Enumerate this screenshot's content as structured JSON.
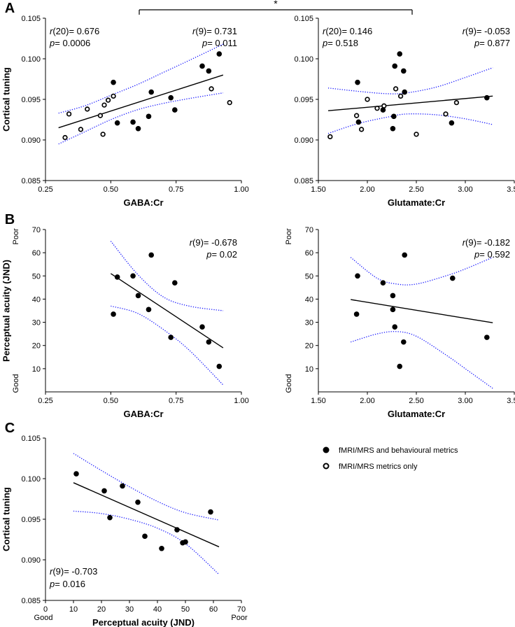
{
  "figure": {
    "significance_star": "*",
    "legend": [
      {
        "marker": "filled",
        "label": "fMRI/MRS and behavioural metrics"
      },
      {
        "marker": "open",
        "label": "fMRI/MRS metrics only"
      }
    ],
    "colors": {
      "ci": "#1a1aff",
      "fit": "#000000",
      "axis": "#000000"
    }
  },
  "chart_data": [
    {
      "id": "A-left",
      "panel_label": "A",
      "type": "scatter",
      "xlabel": "GABA:Cr",
      "ylabel": "Cortical tuning",
      "xlim": [
        0.25,
        1.0
      ],
      "ylim": [
        0.085,
        0.105
      ],
      "xticks": [
        "0.25",
        "0.50",
        "0.75",
        "1.00"
      ],
      "yticks": [
        "0.085",
        "0.090",
        "0.095",
        "0.100",
        "0.105"
      ],
      "fit": {
        "x": [
          0.3,
          0.93
        ],
        "y": [
          0.0915,
          0.098
        ]
      },
      "ci_upper": {
        "x": [
          0.3,
          0.4,
          0.5,
          0.6,
          0.7,
          0.8,
          0.93
        ],
        "y": [
          0.0933,
          0.0942,
          0.0955,
          0.0968,
          0.0983,
          0.0998,
          0.1018
        ]
      },
      "ci_lower": {
        "x": [
          0.3,
          0.4,
          0.5,
          0.6,
          0.7,
          0.8,
          0.93
        ],
        "y": [
          0.0895,
          0.091,
          0.0925,
          0.0937,
          0.0945,
          0.0951,
          0.0958
        ]
      },
      "filled": [
        [
          0.51,
          0.0971
        ],
        [
          0.525,
          0.0921
        ],
        [
          0.585,
          0.0922
        ],
        [
          0.605,
          0.0914
        ],
        [
          0.645,
          0.0929
        ],
        [
          0.655,
          0.0959
        ],
        [
          0.73,
          0.0952
        ],
        [
          0.745,
          0.0937
        ],
        [
          0.85,
          0.0991
        ],
        [
          0.875,
          0.0985
        ],
        [
          0.915,
          0.1006
        ]
      ],
      "open": [
        [
          0.325,
          0.0903
        ],
        [
          0.34,
          0.0932
        ],
        [
          0.385,
          0.0913
        ],
        [
          0.41,
          0.0938
        ],
        [
          0.46,
          0.093
        ],
        [
          0.47,
          0.0907
        ],
        [
          0.475,
          0.0943
        ],
        [
          0.49,
          0.0949
        ],
        [
          0.51,
          0.0954
        ],
        [
          0.885,
          0.0963
        ],
        [
          0.955,
          0.0946
        ]
      ],
      "stats_left": {
        "r_label": "r",
        "r_text": "(20)= 0.676",
        "p_label": "p",
        "p_text": "= 0.0006"
      },
      "stats_right": {
        "r_label": "r",
        "r_text": "(9)= 0.731",
        "p_label": "p",
        "p_text": "= 0.011"
      }
    },
    {
      "id": "A-right",
      "type": "scatter",
      "xlabel": "Glutamate:Cr",
      "ylabel": "",
      "xlim": [
        1.5,
        3.5
      ],
      "ylim": [
        0.085,
        0.105
      ],
      "xticks": [
        "1.50",
        "2.00",
        "2.50",
        "3.00",
        "3.50"
      ],
      "yticks": [
        "0.085",
        "0.090",
        "0.095",
        "0.100",
        "0.105"
      ],
      "fit": {
        "x": [
          1.6,
          3.28
        ],
        "y": [
          0.0936,
          0.0954
        ]
      },
      "ci_upper": {
        "x": [
          1.6,
          1.9,
          2.2,
          2.4,
          2.7,
          3.0,
          3.28
        ],
        "y": [
          0.0964,
          0.096,
          0.0957,
          0.0958,
          0.0965,
          0.0977,
          0.0989
        ]
      },
      "ci_lower": {
        "x": [
          1.6,
          1.9,
          2.2,
          2.4,
          2.7,
          3.0,
          3.28
        ],
        "y": [
          0.0908,
          0.092,
          0.0928,
          0.0932,
          0.0931,
          0.0926,
          0.0919
        ]
      },
      "filled": [
        [
          1.9,
          0.0971
        ],
        [
          1.91,
          0.0922
        ],
        [
          2.16,
          0.0937
        ],
        [
          2.26,
          0.0914
        ],
        [
          2.27,
          0.0929
        ],
        [
          2.28,
          0.0991
        ],
        [
          2.33,
          0.1006
        ],
        [
          2.37,
          0.0985
        ],
        [
          2.38,
          0.0959
        ],
        [
          2.86,
          0.0921
        ],
        [
          3.22,
          0.0952
        ]
      ],
      "open": [
        [
          1.62,
          0.0904
        ],
        [
          1.89,
          0.093
        ],
        [
          1.94,
          0.0913
        ],
        [
          2.0,
          0.095
        ],
        [
          2.1,
          0.0939
        ],
        [
          2.17,
          0.0942
        ],
        [
          2.29,
          0.0963
        ],
        [
          2.34,
          0.0954
        ],
        [
          2.5,
          0.0907
        ],
        [
          2.8,
          0.0932
        ],
        [
          2.91,
          0.0946
        ]
      ],
      "stats_left": {
        "r_label": "r",
        "r_text": "(20)= 0.146",
        "p_label": "p",
        "p_text": "= 0.518"
      },
      "stats_right": {
        "r_label": "r",
        "r_text": "(9)= -0.053",
        "p_label": "p",
        "p_text": "= 0.877"
      }
    },
    {
      "id": "B-left",
      "panel_label": "B",
      "type": "scatter",
      "xlabel": "GABA:Cr",
      "ylabel": "Perceptual acuity (JND)",
      "y_top_label": "Poor",
      "y_bottom_label": "Good",
      "xlim": [
        0.25,
        1.0
      ],
      "ylim": [
        0,
        70
      ],
      "xticks": [
        "0.25",
        "0.50",
        "0.75",
        "1.00"
      ],
      "yticks": [
        "10",
        "20",
        "30",
        "40",
        "50",
        "60",
        "70"
      ],
      "fit": {
        "x": [
          0.5,
          0.93
        ],
        "y": [
          51,
          19
        ]
      },
      "ci_upper": {
        "x": [
          0.5,
          0.6,
          0.7,
          0.8,
          0.93
        ],
        "y": [
          65,
          51,
          41,
          37,
          35
        ]
      },
      "ci_lower": {
        "x": [
          0.5,
          0.6,
          0.7,
          0.8,
          0.93
        ],
        "y": [
          37,
          34,
          27,
          18,
          3
        ]
      },
      "filled": [
        [
          0.51,
          33.5
        ],
        [
          0.525,
          49.5
        ],
        [
          0.585,
          50
        ],
        [
          0.605,
          41.5
        ],
        [
          0.645,
          35.5
        ],
        [
          0.655,
          59
        ],
        [
          0.73,
          23.5
        ],
        [
          0.745,
          47
        ],
        [
          0.85,
          28
        ],
        [
          0.875,
          21.5
        ],
        [
          0.915,
          11
        ]
      ],
      "open": [],
      "stats_right": {
        "r_label": "r",
        "r_text": "(9)= -0.678",
        "p_label": "p",
        "p_text": "= 0.02"
      }
    },
    {
      "id": "B-right",
      "type": "scatter",
      "xlabel": "Glutamate:Cr",
      "ylabel": "",
      "y_top_label": "Poor",
      "y_bottom_label": "Good",
      "xlim": [
        1.5,
        3.5
      ],
      "ylim": [
        0,
        70
      ],
      "xticks": [
        "1.50",
        "2.00",
        "2.50",
        "3.00",
        "3.50"
      ],
      "yticks": [
        "10",
        "20",
        "30",
        "40",
        "50",
        "60",
        "70"
      ],
      "fit": {
        "x": [
          1.83,
          3.28
        ],
        "y": [
          39.8,
          29.8
        ]
      },
      "ci_upper": {
        "x": [
          1.83,
          2.1,
          2.3,
          2.5,
          2.8,
          3.0,
          3.28
        ],
        "y": [
          58,
          49,
          46.5,
          46.5,
          50,
          53,
          58
        ]
      },
      "ci_lower": {
        "x": [
          1.83,
          2.1,
          2.3,
          2.5,
          2.8,
          3.0,
          3.28
        ],
        "y": [
          21.5,
          25,
          26,
          24,
          16,
          10,
          1.5
        ]
      },
      "filled": [
        [
          1.9,
          50
        ],
        [
          1.89,
          33.5
        ],
        [
          2.16,
          47
        ],
        [
          2.26,
          41.5
        ],
        [
          2.26,
          35.5
        ],
        [
          2.28,
          28
        ],
        [
          2.33,
          11
        ],
        [
          2.37,
          21.5
        ],
        [
          2.38,
          59
        ],
        [
          2.87,
          49
        ],
        [
          3.22,
          23.5
        ]
      ],
      "open": [],
      "stats_right": {
        "r_label": "r",
        "r_text": "(9)= -0.182",
        "p_label": "p",
        "p_text": "= 0.592"
      }
    },
    {
      "id": "C",
      "panel_label": "C",
      "type": "scatter",
      "xlabel": "Perceptual acuity (JND)",
      "ylabel": "Cortical tuning",
      "x_left_label": "Good",
      "x_right_label": "Poor",
      "xlim": [
        0,
        70
      ],
      "ylim": [
        0.085,
        0.105
      ],
      "xticks": [
        "0",
        "10",
        "20",
        "30",
        "40",
        "50",
        "60",
        "70"
      ],
      "yticks": [
        "0.085",
        "0.090",
        "0.095",
        "0.100",
        "0.105"
      ],
      "fit": {
        "x": [
          10,
          62
        ],
        "y": [
          0.0995,
          0.0916
        ]
      },
      "ci_upper": {
        "x": [
          10,
          20,
          30,
          40,
          50,
          62
        ],
        "y": [
          0.1031,
          0.101,
          0.099,
          0.0972,
          0.0958,
          0.0949
        ]
      },
      "ci_lower": {
        "x": [
          10,
          20,
          30,
          40,
          50,
          62
        ],
        "y": [
          0.096,
          0.0957,
          0.095,
          0.0939,
          0.092,
          0.0882
        ]
      },
      "filled": [
        [
          11,
          0.1006
        ],
        [
          21,
          0.0985
        ],
        [
          23,
          0.0952
        ],
        [
          27.5,
          0.0991
        ],
        [
          33,
          0.0971
        ],
        [
          35.5,
          0.0929
        ],
        [
          41.5,
          0.0914
        ],
        [
          47,
          0.0937
        ],
        [
          49,
          0.0921
        ],
        [
          50,
          0.0922
        ],
        [
          59,
          0.0959
        ]
      ],
      "open": [],
      "stats_left": {
        "r_label": "r",
        "r_text": "(9)= -0.703",
        "p_label": "p",
        "p_text": "= 0.016"
      }
    }
  ]
}
